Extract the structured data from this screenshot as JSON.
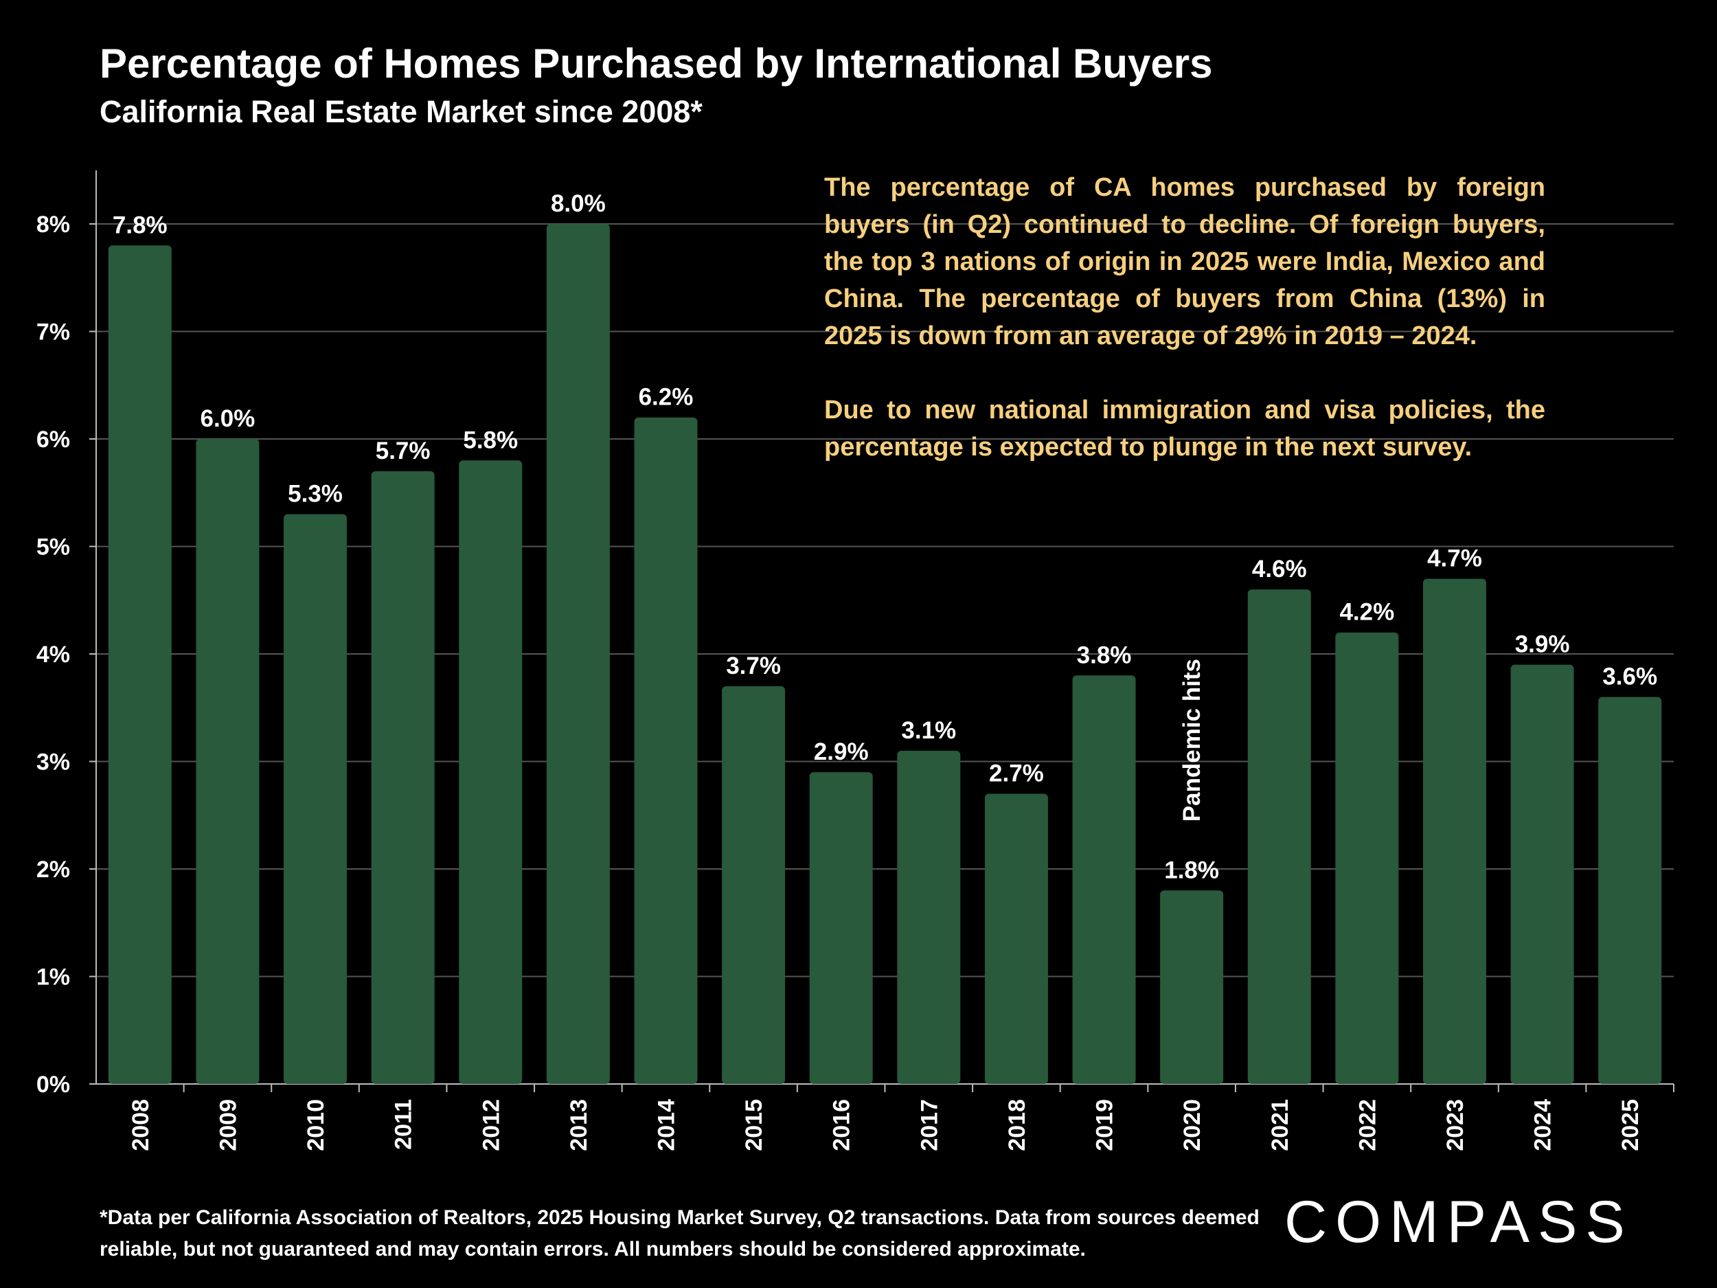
{
  "title": "Percentage of Homes Purchased by International Buyers",
  "subtitle": "California Real Estate Market since 2008*",
  "callout": {
    "paragraph1": "The percentage of CA homes purchased by foreign buyers (in Q2) continued to decline. Of foreign buyers, the top 3 nations of origin in 2025 were India, Mexico and China. The percentage of buyers from China (13%) in 2025 is down from an average of 29% in 2019 – 2024.",
    "paragraph2": "Due to new national immigration and visa policies, the percentage is expected to plunge in the next survey."
  },
  "footnote": "*Data per California Association of Realtors, 2025 Housing Market Survey, Q2 transactions. Data from sources deemed reliable, but not guaranteed and may contain errors. All numbers should be considered approximate.",
  "logo": "COMPASS",
  "colors": {
    "bar": "#285a3b",
    "callout_text": "#f6cf7f",
    "background": "#000000",
    "grid": "#555555"
  },
  "chart_data": {
    "type": "bar",
    "title": "Percentage of Homes Purchased by International Buyers",
    "subtitle": "California Real Estate Market since 2008*",
    "categories": [
      "2008",
      "2009",
      "2010",
      "2011",
      "2012",
      "2013",
      "2014",
      "2015",
      "2016",
      "2017",
      "2018",
      "2019",
      "2020",
      "2021",
      "2022",
      "2023",
      "2024",
      "2025"
    ],
    "values": [
      7.8,
      6.0,
      5.3,
      5.7,
      5.8,
      8.0,
      6.2,
      3.7,
      2.9,
      3.1,
      2.7,
      3.8,
      1.8,
      4.6,
      4.2,
      4.7,
      3.9,
      3.6
    ],
    "data_labels": [
      "7.8%",
      "6.0%",
      "5.3%",
      "5.7%",
      "5.8%",
      "8.0%",
      "6.2%",
      "3.7%",
      "2.9%",
      "3.1%",
      "2.7%",
      "3.8%",
      "1.8%",
      "4.6%",
      "4.2%",
      "4.7%",
      "3.9%",
      "3.6%"
    ],
    "y_ticks": [
      "0%",
      "1%",
      "2%",
      "3%",
      "4%",
      "5%",
      "6%",
      "7%",
      "8%"
    ],
    "ylim": [
      0,
      8.5
    ],
    "xlabel": "",
    "ylabel": "",
    "grid": true,
    "annotation": {
      "category": "2020",
      "text": "Pandemic hits"
    }
  }
}
